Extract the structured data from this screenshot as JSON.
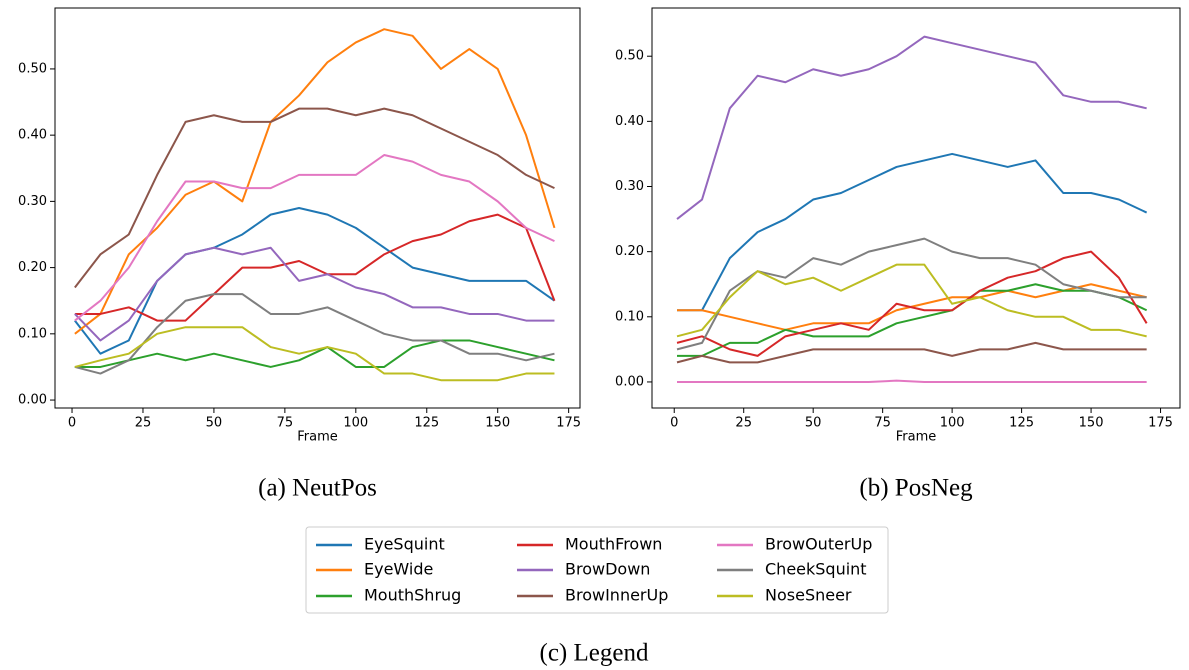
{
  "chart_data": [
    {
      "type": "line",
      "caption": "(a) NeutPos",
      "x_label": "Frame",
      "x": [
        1,
        10,
        20,
        30,
        40,
        50,
        60,
        70,
        80,
        90,
        100,
        110,
        120,
        130,
        140,
        150,
        160,
        170
      ],
      "xlim": [
        -6,
        179
      ],
      "xticks": [
        0,
        25,
        50,
        75,
        100,
        125,
        150,
        175
      ],
      "ylim": [
        -0.012,
        0.592
      ],
      "yticks": [
        {
          "value": 0,
          "label": "0.00"
        },
        {
          "value": 0.1,
          "label": "0.10"
        },
        {
          "value": 0.2,
          "label": "0.20"
        },
        {
          "value": 0.3,
          "label": "0.30"
        },
        {
          "value": 0.4,
          "label": "0.40"
        },
        {
          "value": 0.5,
          "label": "0.50"
        }
      ],
      "series": [
        {
          "name": "EyeSquint",
          "color": "#1f77b4",
          "values": [
            0.12,
            0.07,
            0.09,
            0.18,
            0.22,
            0.23,
            0.25,
            0.28,
            0.29,
            0.28,
            0.26,
            0.23,
            0.2,
            0.19,
            0.18,
            0.18,
            0.18,
            0.15
          ]
        },
        {
          "name": "EyeWide",
          "color": "#ff7f0e",
          "values": [
            0.1,
            0.13,
            0.22,
            0.26,
            0.31,
            0.33,
            0.3,
            0.42,
            0.46,
            0.51,
            0.54,
            0.56,
            0.55,
            0.5,
            0.53,
            0.5,
            0.4,
            0.26
          ]
        },
        {
          "name": "MouthShrug",
          "color": "#2ca02c",
          "values": [
            0.05,
            0.05,
            0.06,
            0.07,
            0.06,
            0.07,
            0.06,
            0.05,
            0.06,
            0.08,
            0.05,
            0.05,
            0.08,
            0.09,
            0.09,
            0.08,
            0.07,
            0.06
          ]
        },
        {
          "name": "MouthFrown",
          "color": "#d62728",
          "values": [
            0.13,
            0.13,
            0.14,
            0.12,
            0.12,
            0.16,
            0.2,
            0.2,
            0.21,
            0.19,
            0.19,
            0.22,
            0.24,
            0.25,
            0.27,
            0.28,
            0.26,
            0.15
          ]
        },
        {
          "name": "BrowDown",
          "color": "#9467bd",
          "values": [
            0.13,
            0.09,
            0.12,
            0.18,
            0.22,
            0.23,
            0.22,
            0.23,
            0.18,
            0.19,
            0.17,
            0.16,
            0.14,
            0.14,
            0.13,
            0.13,
            0.12,
            0.12
          ]
        },
        {
          "name": "BrowInnerUp",
          "color": "#8c564b",
          "values": [
            0.17,
            0.22,
            0.25,
            0.34,
            0.42,
            0.43,
            0.42,
            0.42,
            0.44,
            0.44,
            0.43,
            0.44,
            0.43,
            0.41,
            0.39,
            0.37,
            0.34,
            0.32
          ]
        },
        {
          "name": "BrowOuterUp",
          "color": "#e377c2",
          "values": [
            0.12,
            0.15,
            0.2,
            0.27,
            0.33,
            0.33,
            0.32,
            0.32,
            0.34,
            0.34,
            0.34,
            0.37,
            0.36,
            0.34,
            0.33,
            0.3,
            0.26,
            0.24
          ]
        },
        {
          "name": "CheekSquint",
          "color": "#7f7f7f",
          "values": [
            0.05,
            0.04,
            0.06,
            0.11,
            0.15,
            0.16,
            0.16,
            0.13,
            0.13,
            0.14,
            0.12,
            0.1,
            0.09,
            0.09,
            0.07,
            0.07,
            0.06,
            0.07
          ]
        },
        {
          "name": "NoseSneer",
          "color": "#bcbd22",
          "values": [
            0.05,
            0.06,
            0.07,
            0.1,
            0.11,
            0.11,
            0.11,
            0.08,
            0.07,
            0.08,
            0.07,
            0.04,
            0.04,
            0.03,
            0.03,
            0.03,
            0.04,
            0.04
          ]
        }
      ]
    },
    {
      "type": "line",
      "caption": "(b) PosNeg",
      "x_label": "Frame",
      "x": [
        1,
        10,
        20,
        30,
        40,
        50,
        60,
        70,
        80,
        90,
        100,
        110,
        120,
        130,
        140,
        150,
        160,
        170
      ],
      "xlim": [
        -8,
        182
      ],
      "xticks": [
        0,
        25,
        50,
        75,
        100,
        125,
        150,
        175
      ],
      "ylim": [
        -0.04,
        0.574
      ],
      "yticks": [
        {
          "value": 0,
          "label": "0.00"
        },
        {
          "value": 0.1,
          "label": "0.10"
        },
        {
          "value": 0.2,
          "label": "0.20"
        },
        {
          "value": 0.3,
          "label": "0.30"
        },
        {
          "value": 0.4,
          "label": "0.40"
        },
        {
          "value": 0.5,
          "label": "0.50"
        }
      ],
      "series": [
        {
          "name": "EyeSquint",
          "color": "#1f77b4",
          "values": [
            0.11,
            0.11,
            0.19,
            0.23,
            0.25,
            0.28,
            0.29,
            0.31,
            0.33,
            0.34,
            0.35,
            0.34,
            0.33,
            0.34,
            0.29,
            0.29,
            0.28,
            0.26
          ]
        },
        {
          "name": "EyeWide",
          "color": "#ff7f0e",
          "values": [
            0.11,
            0.11,
            0.1,
            0.09,
            0.08,
            0.09,
            0.09,
            0.09,
            0.11,
            0.12,
            0.13,
            0.13,
            0.14,
            0.13,
            0.14,
            0.15,
            0.14,
            0.13
          ]
        },
        {
          "name": "MouthShrug",
          "color": "#2ca02c",
          "values": [
            0.04,
            0.04,
            0.06,
            0.06,
            0.08,
            0.07,
            0.07,
            0.07,
            0.09,
            0.1,
            0.11,
            0.14,
            0.14,
            0.15,
            0.14,
            0.14,
            0.13,
            0.11
          ]
        },
        {
          "name": "MouthFrown",
          "color": "#d62728",
          "values": [
            0.06,
            0.07,
            0.05,
            0.04,
            0.07,
            0.08,
            0.09,
            0.08,
            0.12,
            0.11,
            0.11,
            0.14,
            0.16,
            0.17,
            0.19,
            0.2,
            0.16,
            0.09
          ]
        },
        {
          "name": "BrowDown",
          "color": "#9467bd",
          "values": [
            0.25,
            0.28,
            0.42,
            0.47,
            0.46,
            0.48,
            0.47,
            0.48,
            0.5,
            0.53,
            0.52,
            0.51,
            0.5,
            0.49,
            0.44,
            0.43,
            0.43,
            0.42
          ]
        },
        {
          "name": "BrowInnerUp",
          "color": "#8c564b",
          "values": [
            0.03,
            0.04,
            0.03,
            0.03,
            0.04,
            0.05,
            0.05,
            0.05,
            0.05,
            0.05,
            0.04,
            0.05,
            0.05,
            0.06,
            0.05,
            0.05,
            0.05,
            0.05
          ]
        },
        {
          "name": "BrowOuterUp",
          "color": "#e377c2",
          "values": [
            0,
            0,
            0,
            0,
            0,
            0,
            0,
            0,
            0.002,
            0,
            0,
            0,
            0,
            0,
            0,
            0,
            0,
            0
          ]
        },
        {
          "name": "CheekSquint",
          "color": "#7f7f7f",
          "values": [
            0.05,
            0.06,
            0.14,
            0.17,
            0.16,
            0.19,
            0.18,
            0.2,
            0.21,
            0.22,
            0.2,
            0.19,
            0.19,
            0.18,
            0.15,
            0.14,
            0.13,
            0.13
          ]
        },
        {
          "name": "NoseSneer",
          "color": "#bcbd22",
          "values": [
            0.07,
            0.08,
            0.13,
            0.17,
            0.15,
            0.16,
            0.14,
            0.16,
            0.18,
            0.18,
            0.12,
            0.13,
            0.11,
            0.1,
            0.1,
            0.08,
            0.08,
            0.07
          ]
        }
      ]
    }
  ],
  "figure": {
    "legend_caption": "(c) Legend"
  }
}
